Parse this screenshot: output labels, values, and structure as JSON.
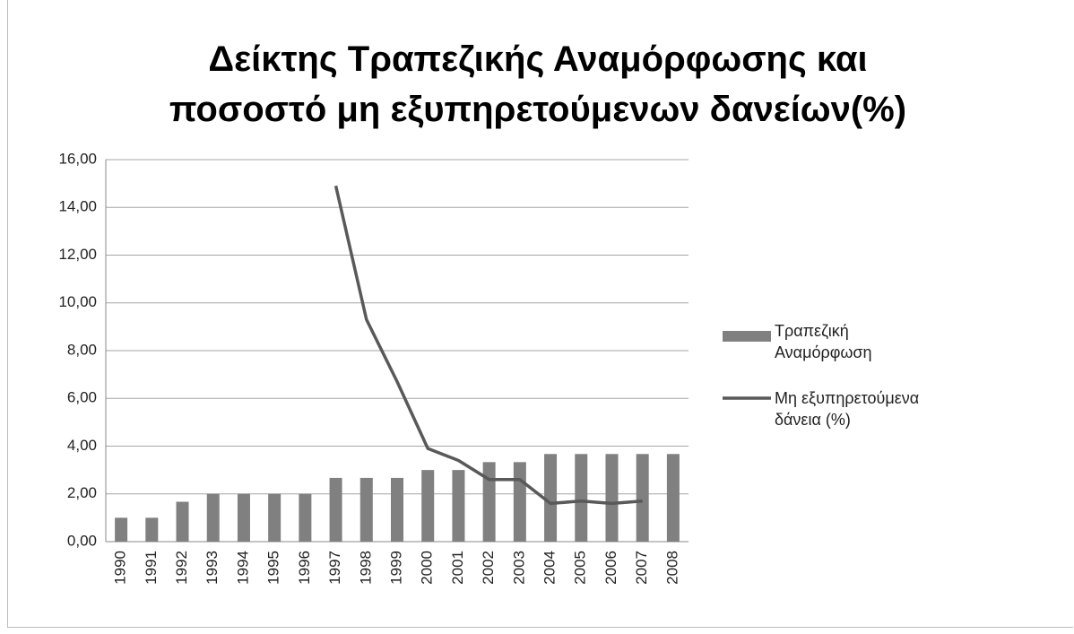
{
  "chart_data": {
    "type": "bar_line",
    "title": "Δείκτης Τραπεζικής Αναμόρφωσης και ποσοστό μη εξυπηρετούμενων δανείων(%)",
    "categories": [
      "1990",
      "1991",
      "1992",
      "1993",
      "1994",
      "1995",
      "1996",
      "1997",
      "1998",
      "1999",
      "2000",
      "2001",
      "2002",
      "2003",
      "2004",
      "2005",
      "2006",
      "2007",
      "2008"
    ],
    "series": [
      {
        "name": "Τραπεζική Αναμόρφωση",
        "type": "bar",
        "color": "#808080",
        "values": [
          1.0,
          1.0,
          1.67,
          2.0,
          2.0,
          2.0,
          2.0,
          2.67,
          2.67,
          2.67,
          3.0,
          3.0,
          3.33,
          3.33,
          3.67,
          3.67,
          3.67,
          3.67,
          3.67
        ]
      },
      {
        "name": "Μη εξυπηρετούμενα δάνεια (%)",
        "type": "line",
        "color": "#595959",
        "values": [
          null,
          null,
          null,
          null,
          null,
          null,
          null,
          14.9,
          9.3,
          6.7,
          3.9,
          3.4,
          2.6,
          2.6,
          1.6,
          1.7,
          1.6,
          1.7,
          null
        ]
      }
    ],
    "ylim": [
      0,
      16
    ],
    "yticks": [
      {
        "value": 0,
        "label": "0,00"
      },
      {
        "value": 2,
        "label": "2,00"
      },
      {
        "value": 4,
        "label": "4,00"
      },
      {
        "value": 6,
        "label": "6,00"
      },
      {
        "value": 8,
        "label": "8,00"
      },
      {
        "value": 10,
        "label": "10,00"
      },
      {
        "value": 12,
        "label": "12,00"
      },
      {
        "value": 14,
        "label": "14,00"
      },
      {
        "value": 16,
        "label": "16,00"
      }
    ],
    "grid": true,
    "legend": "right"
  }
}
